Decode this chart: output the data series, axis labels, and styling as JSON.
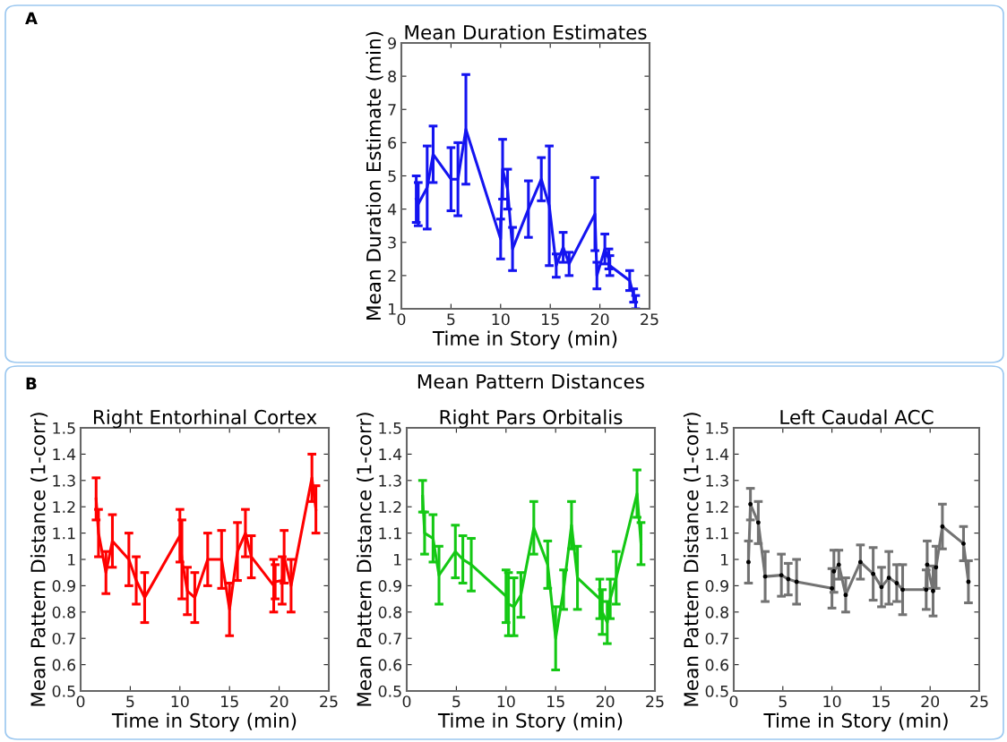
{
  "chart_data": [
    {
      "type": "line",
      "title": "Mean Duration Estimates",
      "xlabel": "Time in Story (min)",
      "ylabel": "Mean Duration Estimate (min)",
      "annotations": [
        "A"
      ],
      "xlim": [
        0,
        25
      ],
      "xticks": [
        0,
        5,
        10,
        15,
        20,
        25
      ],
      "ylim": [
        1,
        9
      ],
      "yticks": [
        1,
        2,
        3,
        4,
        5,
        6,
        7,
        8,
        9
      ],
      "grid": false,
      "legend": false,
      "marker": "none",
      "line_style": "solid",
      "series": [
        {
          "color": "#1414f0",
          "x": [
            1.5,
            1.7,
            2.6,
            3.2,
            5.0,
            5.7,
            6.5,
            10.0,
            10.2,
            10.7,
            11.2,
            12.8,
            14.1,
            14.9,
            15.6,
            16.3,
            16.9,
            19.5,
            19.7,
            20.5,
            20.9,
            21.0,
            23.0,
            23.4,
            23.6
          ],
          "values": [
            4.3,
            4.15,
            4.65,
            5.65,
            4.9,
            4.9,
            6.4,
            3.1,
            5.2,
            4.6,
            2.8,
            4.0,
            4.9,
            4.1,
            2.3,
            2.85,
            2.35,
            3.85,
            2.0,
            2.8,
            2.5,
            2.3,
            1.85,
            1.4,
            1.2
          ],
          "errors": [
            0.7,
            0.65,
            1.25,
            0.85,
            0.95,
            1.1,
            1.65,
            0.6,
            0.9,
            0.6,
            0.65,
            0.85,
            0.65,
            1.8,
            0.35,
            0.45,
            0.35,
            1.1,
            0.4,
            0.45,
            0.3,
            0.3,
            0.3,
            0.2,
            0.2
          ]
        }
      ]
    },
    {
      "type": "line",
      "title": "Right Entorhinal Cortex",
      "xlabel": "Time in Story (min)",
      "ylabel": "Mean Pattern Distance (1-corr)",
      "annotations": [
        "B",
        "Mean Pattern Distances"
      ],
      "xlim": [
        0,
        25
      ],
      "xticks": [
        0,
        5,
        10,
        15,
        20,
        25
      ],
      "ylim": [
        0.5,
        1.5
      ],
      "yticks": [
        0.5,
        0.6,
        0.7,
        0.8,
        0.9,
        1,
        1.1,
        1.2,
        1.3,
        1.4,
        1.5
      ],
      "grid": false,
      "legend": false,
      "marker": "none",
      "line_style": "solid",
      "series": [
        {
          "color": "#ff0000",
          "x": [
            1.56,
            1.8,
            2.55,
            3.2,
            4.86,
            5.6,
            6.45,
            10.0,
            10.2,
            10.75,
            11.5,
            12.8,
            14.2,
            15.0,
            15.8,
            16.6,
            17.2,
            19.45,
            19.6,
            20.3,
            20.5,
            21.2,
            23.3,
            23.7
          ],
          "values": [
            1.23,
            1.1,
            0.95,
            1.07,
            1.0,
            0.92,
            0.855,
            1.09,
            1.0,
            0.88,
            0.855,
            1.0,
            1.0,
            0.81,
            1.03,
            1.1,
            1.01,
            0.9,
            0.915,
            0.92,
            1.01,
            0.9,
            1.31,
            1.19
          ],
          "errors": [
            0.08,
            0.09,
            0.08,
            0.1,
            0.1,
            0.09,
            0.095,
            0.1,
            0.15,
            0.09,
            0.095,
            0.1,
            0.11,
            0.1,
            0.11,
            0.09,
            0.08,
            0.1,
            0.065,
            0.09,
            0.1,
            0.1,
            0.09,
            0.09
          ]
        }
      ]
    },
    {
      "type": "line",
      "title": "Right Pars Orbitalis",
      "xlabel": "Time in Story (min)",
      "ylabel": "Mean Pattern Distance (1-corr)",
      "xlim": [
        0,
        25
      ],
      "xticks": [
        0,
        5,
        10,
        15,
        20,
        25
      ],
      "ylim": [
        0.5,
        1.5
      ],
      "yticks": [
        0.5,
        0.6,
        0.7,
        0.8,
        0.9,
        1,
        1.1,
        1.2,
        1.3,
        1.4,
        1.5
      ],
      "grid": false,
      "legend": false,
      "marker": "none",
      "line_style": "solid",
      "series": [
        {
          "color": "#14c814",
          "x": [
            1.6,
            1.8,
            2.65,
            3.25,
            4.9,
            5.65,
            6.5,
            10.0,
            10.25,
            10.8,
            11.5,
            12.8,
            14.2,
            15.0,
            15.8,
            16.6,
            17.2,
            19.45,
            19.7,
            20.2,
            20.5,
            21.1,
            23.2,
            23.6
          ],
          "values": [
            1.24,
            1.1,
            1.08,
            0.94,
            1.03,
            1.0,
            0.98,
            0.86,
            0.83,
            0.82,
            0.865,
            1.12,
            0.98,
            0.7,
            0.885,
            1.13,
            0.93,
            0.85,
            0.8,
            0.76,
            0.85,
            0.93,
            1.25,
            1.06
          ],
          "errors": [
            0.06,
            0.08,
            0.09,
            0.11,
            0.1,
            0.09,
            0.1,
            0.1,
            0.12,
            0.11,
            0.085,
            0.1,
            0.09,
            0.12,
            0.075,
            0.09,
            0.12,
            0.075,
            0.085,
            0.08,
            0.075,
            0.1,
            0.09,
            0.08
          ]
        }
      ]
    },
    {
      "type": "line",
      "title": "Left Caudal ACC",
      "xlabel": "Time in Story (min)",
      "ylabel": "Mean Pattern Distance (1-corr)",
      "xlim": [
        0,
        25
      ],
      "xticks": [
        0,
        5,
        10,
        15,
        20,
        25
      ],
      "ylim": [
        0.5,
        1.5
      ],
      "yticks": [
        0.5,
        0.6,
        0.7,
        0.8,
        0.9,
        1,
        1.1,
        1.2,
        1.3,
        1.4,
        1.5
      ],
      "grid": false,
      "legend": false,
      "marker": "circle",
      "line_style": "solid",
      "series": [
        {
          "color": "#737373",
          "x": [
            1.5,
            1.7,
            2.5,
            3.2,
            4.85,
            5.55,
            6.4,
            10.0,
            10.2,
            10.7,
            11.4,
            12.9,
            14.2,
            15.05,
            15.8,
            16.6,
            17.2,
            19.6,
            19.7,
            20.3,
            20.6,
            21.25,
            23.4,
            23.9
          ],
          "values": [
            0.99,
            1.21,
            1.14,
            0.935,
            0.94,
            0.925,
            0.915,
            0.89,
            0.955,
            0.98,
            0.865,
            0.99,
            0.945,
            0.895,
            0.93,
            0.91,
            0.885,
            0.885,
            0.98,
            0.88,
            0.97,
            1.125,
            1.06,
            0.915
          ],
          "errors": [
            0.08,
            0.06,
            0.08,
            0.095,
            0.08,
            0.06,
            0.085,
            0.075,
            0.08,
            0.055,
            0.065,
            0.065,
            0.1,
            0.075,
            0.1,
            0.07,
            0.095,
            0.075,
            0.09,
            0.095,
            0.08,
            0.085,
            0.065,
            0.08
          ]
        }
      ]
    }
  ]
}
